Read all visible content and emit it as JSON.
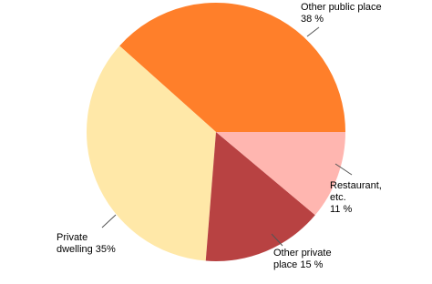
{
  "chart_data": {
    "type": "pie",
    "categories": [
      "Other public place",
      "Private dwelling",
      "Other private place",
      "Restaurant, etc."
    ],
    "values": [
      38,
      35,
      15,
      11
    ],
    "value_labels": [
      "Other public place\n38 %",
      "Private\ndwelling 35%",
      "Other private\nplace 15 %",
      "Restaurant,\netc.\n11 %"
    ],
    "colors": [
      "#ff7f2a",
      "#ffe8a8",
      "#b84242",
      "#ffb6b0"
    ]
  }
}
